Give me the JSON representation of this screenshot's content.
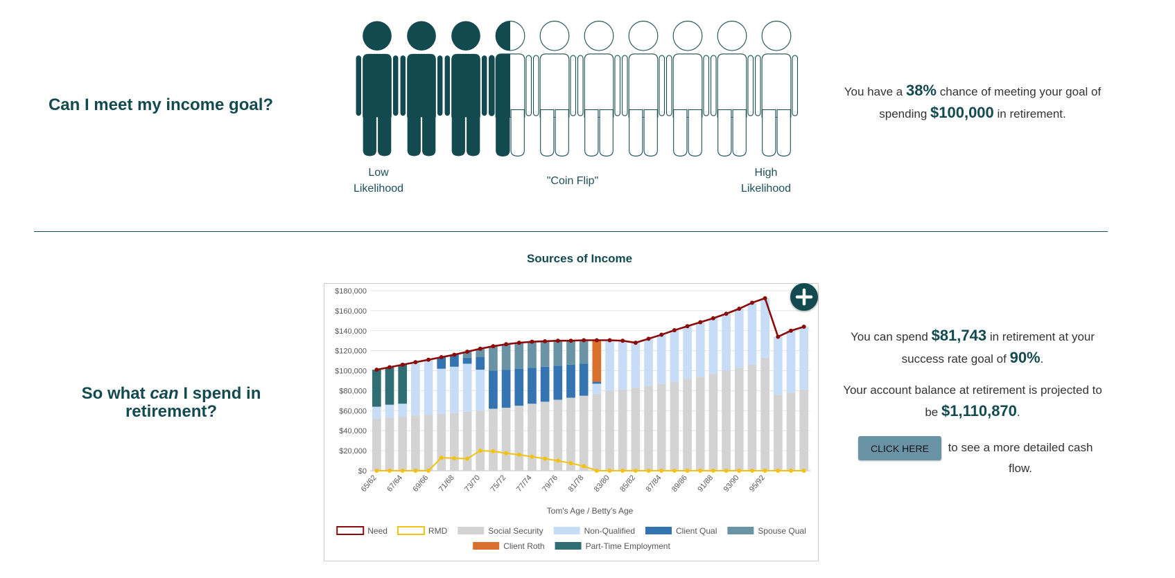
{
  "goal_section": {
    "question": "Can I meet my income goal?",
    "likelihood_labels": [
      "Low Likelihood",
      "\"Coin Flip\"",
      "High Likelihood"
    ],
    "statement": [
      "You have a",
      "38%",
      "chance of meeting your goal of spending",
      "$100,000",
      "in retirement."
    ]
  },
  "spend_section": {
    "question": [
      "So what",
      "can",
      "I spend in retirement?"
    ],
    "spend_statement": [
      "You can spend",
      "$81,743",
      "in retirement at your success rate goal of",
      "90%",
      "."
    ],
    "balance_statement": [
      "Your account balance at retirement is projected to be",
      "$1,110,870",
      "."
    ],
    "button": "CLICK HERE",
    "button_text": "to see a more detailed cash flow."
  },
  "chart_data": {
    "type": "bar",
    "stacked": true,
    "title": "Sources of Income",
    "x_label": "Tom's Age / Betty's Age",
    "categories": [
      "65/62",
      null,
      "67/64",
      null,
      "69/66",
      null,
      "71/68",
      null,
      "73/70",
      null,
      "75/72",
      null,
      "77/74",
      null,
      "79/76",
      null,
      "81/78",
      null,
      "83/80",
      null,
      "85/82",
      null,
      "87/84",
      null,
      "89/86",
      null,
      "91/88",
      null,
      "93/90",
      null,
      "95/92",
      null,
      null,
      null
    ],
    "ylim": [
      0,
      180000
    ],
    "yticks": [
      {
        "value": 0,
        "label": "$0"
      },
      {
        "value": 20000,
        "label": "$20,000"
      },
      {
        "value": 40000,
        "label": "$40,000"
      },
      {
        "value": 60000,
        "label": "$60,000"
      },
      {
        "value": 80000,
        "label": "$80,000"
      },
      {
        "value": 100000,
        "label": "$100,000"
      },
      {
        "value": 120000,
        "label": "$120,000"
      },
      {
        "value": 140000,
        "label": "$140,000"
      },
      {
        "value": 160000,
        "label": "$160,000"
      },
      {
        "value": 180000,
        "label": "$180,000"
      }
    ],
    "grid": true,
    "series": [
      {
        "name": "Need",
        "type": "line",
        "color": "#8b0a0a",
        "values": [
          101000,
          103500,
          106000,
          108500,
          111000,
          113500,
          116000,
          119000,
          122000,
          124500,
          126500,
          128000,
          129000,
          129500,
          130000,
          130000,
          130500,
          130500,
          130500,
          130000,
          128000,
          132000,
          136000,
          140500,
          144500,
          148500,
          152500,
          157000,
          162000,
          168000,
          172500,
          134000,
          140000,
          144000
        ]
      },
      {
        "name": "RMD",
        "type": "line",
        "color": "#f2c20f",
        "values": [
          0,
          0,
          0,
          0,
          0,
          13000,
          12500,
          12000,
          20000,
          19500,
          17500,
          16000,
          14000,
          12000,
          10000,
          7500,
          4500,
          0,
          0,
          0,
          0,
          0,
          0,
          0,
          0,
          0,
          0,
          0,
          0,
          0,
          0,
          0,
          0,
          0
        ]
      },
      {
        "name": "Social Security",
        "color": "#d3d3d3",
        "values": [
          52000,
          53000,
          54000,
          55000,
          56000,
          57000,
          58000,
          59000,
          60000,
          62000,
          63000,
          65000,
          67000,
          69000,
          71000,
          73000,
          75000,
          77000,
          80000,
          81000,
          83000,
          85000,
          87000,
          89000,
          92000,
          94000,
          97000,
          100000,
          103000,
          106000,
          113000,
          76000,
          78000,
          81000
        ]
      },
      {
        "name": "Non-Qualified",
        "color": "#c6dcf7",
        "values": [
          12000,
          13000,
          13000,
          53500,
          55000,
          45000,
          46000,
          48000,
          41000,
          0,
          0,
          0,
          0,
          0,
          0,
          0,
          0,
          10000,
          50500,
          49000,
          45000,
          47000,
          49000,
          51500,
          52500,
          54500,
          55500,
          57000,
          59000,
          62000,
          59500,
          58000,
          62000,
          63000
        ]
      },
      {
        "name": "Client Qual",
        "color": "#3474b0",
        "values": [
          0,
          0,
          0,
          0,
          0,
          11500,
          12000,
          6000,
          13000,
          38000,
          38000,
          37000,
          36000,
          35000,
          34000,
          33000,
          32000,
          2000,
          0,
          0,
          0,
          0,
          0,
          0,
          0,
          0,
          0,
          0,
          0,
          0,
          0,
          0,
          0,
          0
        ]
      },
      {
        "name": "Spouse Qual",
        "color": "#6b93a6",
        "values": [
          0,
          0,
          0,
          0,
          0,
          0,
          0,
          6000,
          8000,
          24500,
          25500,
          26000,
          26000,
          25500,
          25000,
          24000,
          23500,
          0,
          0,
          0,
          0,
          0,
          0,
          0,
          0,
          0,
          0,
          0,
          0,
          0,
          0,
          0,
          0,
          0
        ]
      },
      {
        "name": "Client Roth",
        "color": "#d96f2c",
        "values": [
          0,
          0,
          0,
          0,
          0,
          0,
          0,
          0,
          0,
          0,
          0,
          0,
          0,
          0,
          0,
          0,
          0,
          41500,
          0,
          0,
          0,
          0,
          0,
          0,
          0,
          0,
          0,
          0,
          0,
          0,
          0,
          0,
          0,
          0
        ]
      },
      {
        "name": "Part-Time Employment",
        "color": "#2f6f73",
        "values": [
          37000,
          37500,
          39000,
          0,
          0,
          0,
          0,
          0,
          0,
          0,
          0,
          0,
          0,
          0,
          0,
          0,
          0,
          0,
          0,
          0,
          0,
          0,
          0,
          0,
          0,
          0,
          0,
          0,
          0,
          0,
          0,
          0,
          0,
          0
        ]
      }
    ]
  }
}
